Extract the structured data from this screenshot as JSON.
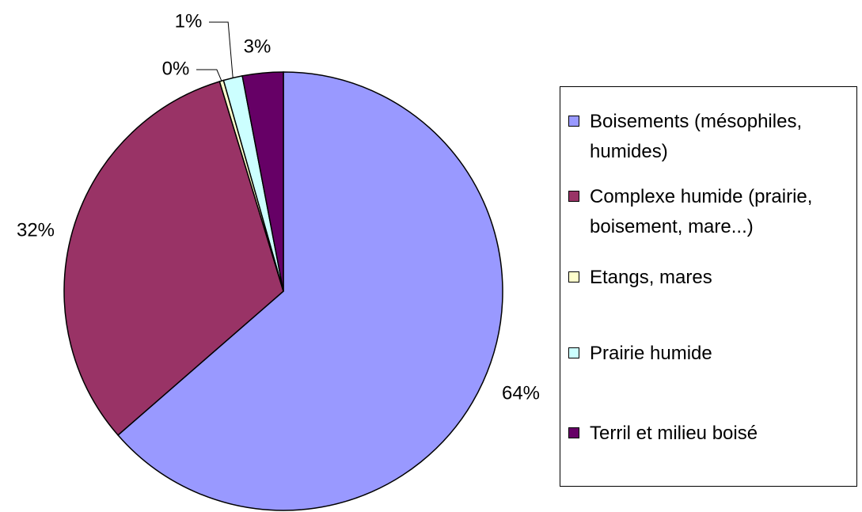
{
  "chart_data": {
    "type": "pie",
    "categories": [
      "Boisements (mésophiles, humides)",
      "Complexe humide (prairie, boisement, mare...)",
      "Etangs, mares",
      "Prairie humide",
      "Terril et milieu boisé"
    ],
    "values": [
      63.6,
      31.7,
      0.3,
      1.4,
      3.0
    ],
    "value_labels": [
      "64%",
      "32%",
      "0%",
      "1%",
      "3%"
    ],
    "colors": [
      "#9999ff",
      "#993366",
      "#ffffcc",
      "#ccffff",
      "#660066"
    ],
    "legend": "right"
  }
}
